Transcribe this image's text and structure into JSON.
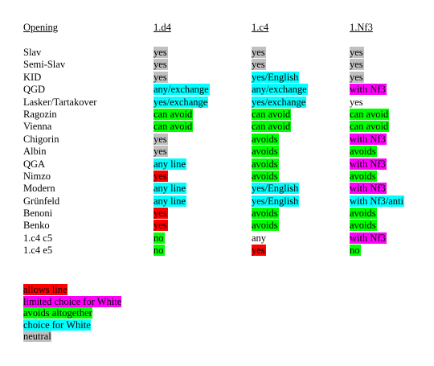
{
  "colors": {
    "red": "#ff0000",
    "magenta": "#ff00ff",
    "green": "#00ff00",
    "cyan": "#00ffff",
    "gray": "#c0c0c0"
  },
  "headers": [
    "Opening",
    "1.d4",
    "1.c4",
    "1.Nf3"
  ],
  "rows": [
    {
      "opening": "Slav",
      "cells": [
        {
          "text": "yes",
          "color": "gray"
        },
        {
          "text": "yes",
          "color": "gray"
        },
        {
          "text": "yes",
          "color": "gray"
        }
      ]
    },
    {
      "opening": "Semi-Slav",
      "cells": [
        {
          "text": "yes",
          "color": "gray"
        },
        {
          "text": "yes",
          "color": "gray"
        },
        {
          "text": "yes",
          "color": "gray"
        }
      ]
    },
    {
      "opening": "KID",
      "cells": [
        {
          "text": "yes",
          "color": "gray"
        },
        {
          "text": "yes/English",
          "color": "cyan"
        },
        {
          "text": "yes",
          "color": "gray"
        }
      ]
    },
    {
      "opening": "QGD",
      "cells": [
        {
          "text": "any/exchange",
          "color": "cyan"
        },
        {
          "text": "any/exchange",
          "color": "cyan"
        },
        {
          "text": "with Nf3",
          "color": "magenta"
        }
      ]
    },
    {
      "opening": "Lasker/Tartakover",
      "cells": [
        {
          "text": "yes/exchange",
          "color": "cyan"
        },
        {
          "text": "yes/exchange",
          "color": "cyan"
        },
        {
          "text": "yes",
          "color": "none"
        }
      ]
    },
    {
      "opening": "Ragozin",
      "cells": [
        {
          "text": "can avoid",
          "color": "green"
        },
        {
          "text": "can avoid",
          "color": "green"
        },
        {
          "text": "can avoid",
          "color": "green"
        }
      ]
    },
    {
      "opening": "Vienna",
      "cells": [
        {
          "text": "can avoid",
          "color": "green"
        },
        {
          "text": "can avoid",
          "color": "green"
        },
        {
          "text": "can avoid",
          "color": "green"
        }
      ]
    },
    {
      "opening": "Chigorin",
      "cells": [
        {
          "text": "yes",
          "color": "gray"
        },
        {
          "text": "avoids",
          "color": "green"
        },
        {
          "text": "with Nf3",
          "color": "magenta"
        }
      ]
    },
    {
      "opening": "Albin",
      "cells": [
        {
          "text": "yes",
          "color": "gray"
        },
        {
          "text": "avoids",
          "color": "green"
        },
        {
          "text": "avoids",
          "color": "green"
        }
      ]
    },
    {
      "opening": "QGA",
      "cells": [
        {
          "text": "any line",
          "color": "cyan"
        },
        {
          "text": "avoids",
          "color": "green"
        },
        {
          "text": "with Nf3",
          "color": "magenta"
        }
      ]
    },
    {
      "opening": "Nimzo",
      "cells": [
        {
          "text": "yes",
          "color": "red"
        },
        {
          "text": "avoids",
          "color": "green"
        },
        {
          "text": "avoids",
          "color": "green"
        }
      ]
    },
    {
      "opening": "Modern",
      "cells": [
        {
          "text": "any line",
          "color": "cyan"
        },
        {
          "text": "yes/English",
          "color": "cyan"
        },
        {
          "text": "with Nf3",
          "color": "magenta"
        }
      ]
    },
    {
      "opening": "Grünfeld",
      "cells": [
        {
          "text": "any line",
          "color": "cyan"
        },
        {
          "text": "yes/English",
          "color": "cyan"
        },
        {
          "text": "with Nf3/anti",
          "color": "cyan"
        }
      ]
    },
    {
      "opening": "Benoni",
      "cells": [
        {
          "text": "yes",
          "color": "red"
        },
        {
          "text": "avoids",
          "color": "green"
        },
        {
          "text": "avoids",
          "color": "green"
        }
      ]
    },
    {
      "opening": "Benko",
      "cells": [
        {
          "text": "yes",
          "color": "red"
        },
        {
          "text": "avoids",
          "color": "green"
        },
        {
          "text": "avoids",
          "color": "green"
        }
      ]
    },
    {
      "opening": "1.c4 c5",
      "cells": [
        {
          "text": "no",
          "color": "green"
        },
        {
          "text": "any",
          "color": "none"
        },
        {
          "text": "with Nf3",
          "color": "magenta"
        }
      ]
    },
    {
      "opening": "1.c4 e5",
      "cells": [
        {
          "text": "no",
          "color": "green"
        },
        {
          "text": "yes",
          "color": "red"
        },
        {
          "text": "no",
          "color": "green"
        }
      ]
    }
  ],
  "legend": [
    {
      "text": "allows line",
      "color": "red"
    },
    {
      "text": "limited choice for White",
      "color": "magenta"
    },
    {
      "text": "avoids altogether",
      "color": "green"
    },
    {
      "text": "choice for White",
      "color": "cyan"
    },
    {
      "text": "neutral",
      "color": "gray"
    }
  ]
}
